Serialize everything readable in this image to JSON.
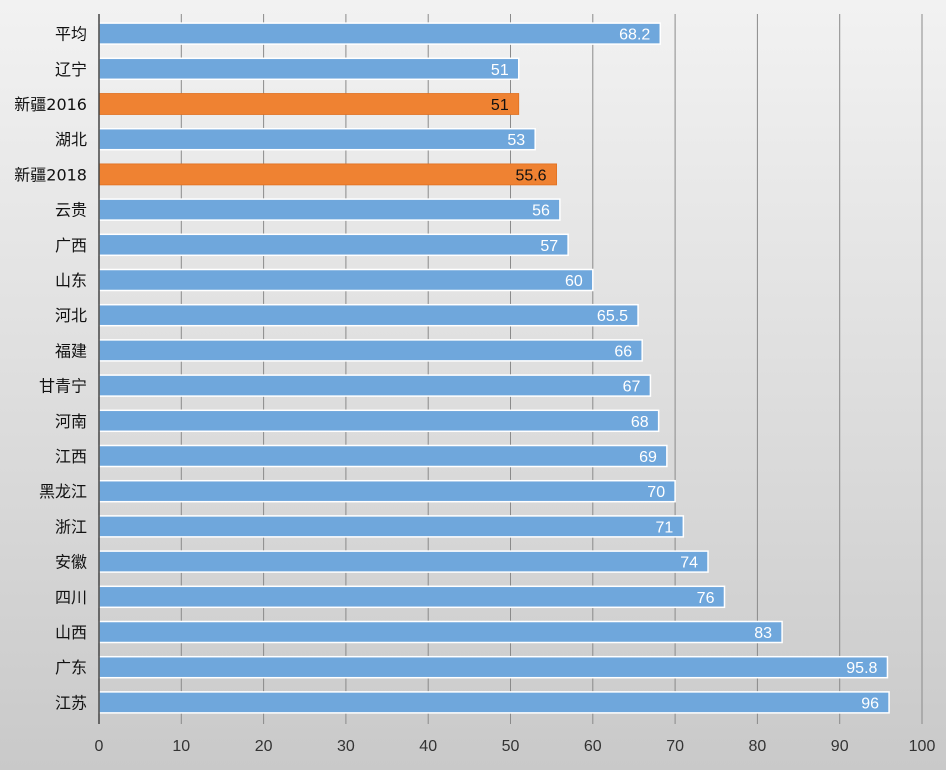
{
  "chart_data": {
    "type": "bar",
    "orientation": "horizontal",
    "categories": [
      "平均",
      "辽宁",
      "新疆2016",
      "湖北",
      "新疆2018",
      "云贵",
      "广西",
      "山东",
      "河北",
      "福建",
      "甘青宁",
      "河南",
      "江西",
      "黑龙江",
      "浙江",
      "安徽",
      "四川",
      "山西",
      "广东",
      "江苏"
    ],
    "values": [
      68.2,
      51,
      51,
      53,
      55.6,
      56,
      57,
      60,
      65.5,
      66,
      67,
      68,
      69,
      70,
      71,
      74,
      76,
      83,
      95.8,
      96
    ],
    "value_labels": [
      "68.2",
      "51",
      "51",
      "53",
      "55.6",
      "56",
      "57",
      "60",
      "65.5",
      "66",
      "67",
      "68",
      "69",
      "70",
      "71",
      "74",
      "76",
      "83",
      "95.8",
      "96"
    ],
    "highlighted": [
      "新疆2016",
      "新疆2018"
    ],
    "xlim": [
      0,
      100
    ],
    "x_ticks": [
      "0",
      "10",
      "20",
      "30",
      "40",
      "50",
      "60",
      "70",
      "80",
      "90",
      "100"
    ],
    "title": "",
    "xlabel": "",
    "ylabel": "",
    "grid": true,
    "legend": "none",
    "colors": {
      "bar": "#6fa7dc",
      "bar_highlight": "#ef8232",
      "label": "#ffffff",
      "label_highlight": "#111111",
      "grid": "#8a8a8a"
    }
  }
}
